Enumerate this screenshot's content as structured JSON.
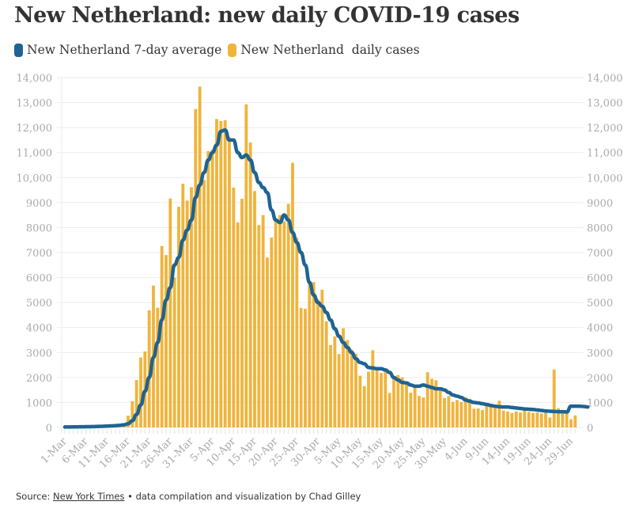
{
  "header": {
    "title": "New Netherland: new daily COVID-19 cases"
  },
  "footer": {
    "prefix": "Source: ",
    "source_link": "New York Times",
    "suffix": " • data compilation and visualization by Chad Gilley"
  },
  "colors": {
    "average_line": "#1f6391",
    "daily_bars": "#f0b43c",
    "grid": "#ebebeb",
    "tick_text": "#aaaaaa",
    "title_text": "#333333"
  },
  "chart_data": {
    "type": "bar",
    "title": "New Netherland: new daily COVID-19 cases",
    "xlabel": "",
    "ylabel": "",
    "ylim": [
      0,
      14000
    ],
    "grid": true,
    "legend_position": "top-left",
    "legend": [
      "New Netherland 7-day average",
      "New Netherland  daily cases"
    ],
    "yticks": [
      "0",
      "1000",
      "2000",
      "3000",
      "4000",
      "5000",
      "6000",
      "7000",
      "8000",
      "9000",
      "10,000",
      "11,000",
      "12,000",
      "13,000",
      "14,000"
    ],
    "ytick_values": [
      0,
      1000,
      2000,
      3000,
      4000,
      5000,
      6000,
      7000,
      8000,
      9000,
      10000,
      11000,
      12000,
      13000,
      14000
    ],
    "xtick_labels": [
      "1-Mar",
      "6-Mar",
      "11-Mar",
      "16-Mar",
      "21-Mar",
      "26-Mar",
      "31-Mar",
      "5-Apr",
      "10-Apr",
      "15-Apr",
      "20-Apr",
      "25-Apr",
      "30-Apr",
      "5-May",
      "10-May",
      "15-May",
      "20-May",
      "25-May",
      "30-May",
      "4-Jun",
      "9-Jun",
      "14-Jun",
      "19-Jun",
      "24-Jun",
      "29-Jun"
    ],
    "xtick_day_index": [
      0,
      5,
      10,
      15,
      20,
      25,
      30,
      35,
      40,
      45,
      50,
      55,
      60,
      65,
      70,
      75,
      80,
      85,
      90,
      95,
      100,
      105,
      110,
      115,
      120
    ],
    "start_date": "1-Mar",
    "series": [
      {
        "name": "New Netherland  daily cases",
        "kind": "bar",
        "values": [
          0,
          0,
          0,
          0,
          0,
          0,
          0,
          0,
          0,
          0,
          0,
          0,
          30,
          0,
          60,
          470,
          1050,
          1900,
          2800,
          3040,
          4690,
          5680,
          4790,
          7260,
          6900,
          9160,
          5990,
          8830,
          9750,
          9080,
          9610,
          12740,
          13640,
          9900,
          11060,
          11130,
          12340,
          12260,
          12290,
          11600,
          9600,
          8200,
          9150,
          12930,
          11400,
          9460,
          8100,
          8500,
          6800,
          7600,
          8350,
          8500,
          8250,
          8950,
          10590,
          7590,
          4780,
          4750,
          5810,
          5820,
          5120,
          5510,
          4250,
          3300,
          3640,
          2940,
          3970,
          3500,
          3120,
          2950,
          2070,
          1650,
          2230,
          3090,
          2290,
          2180,
          2300,
          1380,
          1980,
          2100,
          2000,
          1740,
          1390,
          1580,
          1260,
          1200,
          2210,
          1950,
          1890,
          1510,
          1180,
          1260,
          1020,
          1100,
          1020,
          1220,
          1150,
          750,
          760,
          700,
          900,
          830,
          780,
          1070,
          680,
          640,
          580,
          640,
          600,
          680,
          620,
          580,
          600,
          560,
          600,
          400,
          2320,
          770,
          650,
          650,
          330,
          480
        ]
      },
      {
        "name": "New Netherland 7-day average",
        "kind": "line",
        "values": [
          20,
          20,
          22,
          25,
          28,
          30,
          33,
          37,
          42,
          48,
          55,
          63,
          72,
          85,
          105,
          150,
          270,
          520,
          900,
          1450,
          2000,
          2800,
          3400,
          4300,
          5100,
          5600,
          6500,
          6800,
          7500,
          7900,
          8300,
          9200,
          9700,
          10200,
          10700,
          11000,
          11300,
          11850,
          11900,
          11500,
          11500,
          11000,
          10800,
          10900,
          10700,
          10200,
          9800,
          9600,
          9400,
          8700,
          8300,
          8200,
          8500,
          8300,
          7800,
          7400,
          7000,
          6500,
          5800,
          5300,
          5000,
          4850,
          4600,
          4300,
          3950,
          3650,
          3400,
          3200,
          3000,
          2750,
          2600,
          2550,
          2400,
          2380,
          2350,
          2350,
          2300,
          2200,
          2000,
          1900,
          1800,
          1780,
          1700,
          1650,
          1650,
          1700,
          1650,
          1600,
          1550,
          1550,
          1500,
          1400,
          1300,
          1250,
          1200,
          1100,
          1050,
          1000,
          980,
          950,
          920,
          880,
          850,
          830,
          820,
          820,
          800,
          780,
          760,
          740,
          730,
          720,
          700,
          680,
          660,
          650,
          640,
          630,
          630,
          620,
          850,
          850,
          850,
          840,
          820
        ]
      }
    ]
  }
}
